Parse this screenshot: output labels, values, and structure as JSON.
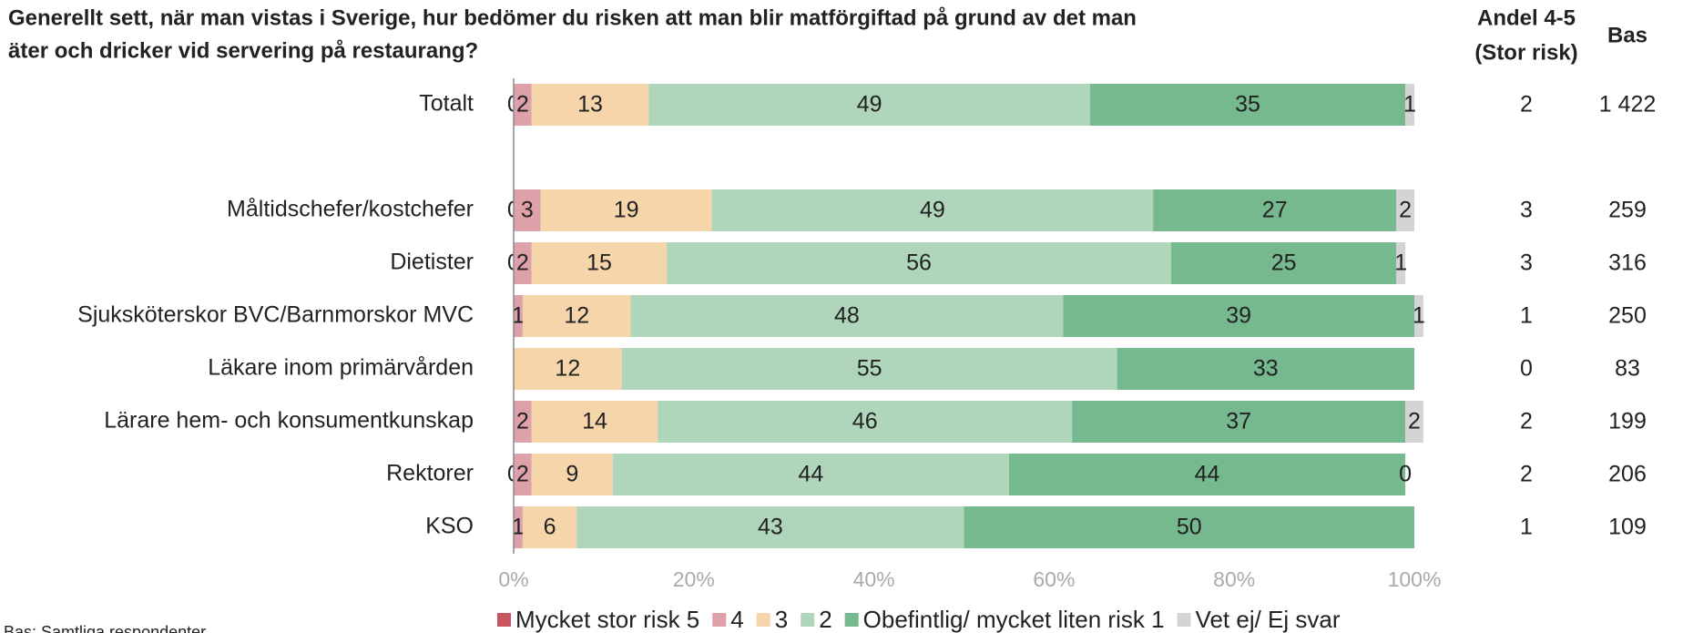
{
  "chart_data": {
    "type": "stacked-bar-horizontal",
    "title": [
      "Generellt sett, när man vistas i Sverige, hur bedömer du risken att man blir matförgiftad på grund av det man",
      "äter och dricker vid servering på restaurang?"
    ],
    "footnote": "Bas: Samtliga respondenter",
    "categories": [
      "Totalt",
      null,
      "Måltidschefer/kostchefer",
      "Dietister",
      "Sjuksköterskor BVC/Barnmorskor MVC",
      "Läkare inom primärvården",
      "Lärare hem- och konsumentkunskap",
      "Rektorer",
      "KSO"
    ],
    "series": [
      {
        "name": "Mycket stor risk 5",
        "color": "#c8555f",
        "values": [
          0,
          null,
          0,
          0,
          0,
          0,
          0,
          0,
          0
        ],
        "value_labels": [
          "0",
          null,
          "0",
          "0",
          null,
          null,
          null,
          "0",
          null
        ]
      },
      {
        "name": "4",
        "color": "#dea1a9",
        "values": [
          2,
          null,
          3,
          2,
          1,
          0,
          2,
          2,
          1
        ],
        "value_labels": [
          "2",
          null,
          "3",
          "2",
          "1",
          null,
          "2",
          "2",
          "1"
        ]
      },
      {
        "name": "3",
        "color": "#f5d5a9",
        "values": [
          13,
          null,
          19,
          15,
          12,
          12,
          14,
          9,
          6
        ],
        "value_labels": [
          "13",
          null,
          "19",
          "15",
          "12",
          "12",
          "14",
          "9",
          "6"
        ]
      },
      {
        "name": "2",
        "color": "#afd6bb",
        "values": [
          49,
          null,
          49,
          56,
          48,
          55,
          46,
          44,
          43
        ],
        "value_labels": [
          "49",
          null,
          "49",
          "56",
          "48",
          "55",
          "46",
          "44",
          "43"
        ]
      },
      {
        "name": "Obefintlig/ mycket liten risk 1",
        "color": "#76b98f",
        "values": [
          35,
          null,
          27,
          25,
          39,
          33,
          37,
          44,
          50
        ],
        "value_labels": [
          "35",
          null,
          "27",
          "25",
          "39",
          "33",
          "37",
          "44",
          "50"
        ]
      },
      {
        "name": "Vet ej/ Ej svar",
        "color": "#d4d4d4",
        "values": [
          1,
          null,
          2,
          1,
          1,
          0,
          2,
          0,
          0
        ],
        "value_labels": [
          "1",
          null,
          "2",
          "1",
          "1",
          null,
          "2",
          "0",
          null
        ]
      }
    ],
    "xlim": [
      0,
      100
    ],
    "xticks": [
      {
        "value": 0,
        "label": "0%"
      },
      {
        "value": 20,
        "label": "20%"
      },
      {
        "value": 40,
        "label": "40%"
      },
      {
        "value": 60,
        "label": "60%"
      },
      {
        "value": 80,
        "label": "80%"
      },
      {
        "value": 100,
        "label": "100%"
      }
    ],
    "columns": [
      {
        "header": [
          "Andel 4-5",
          "(Stor risk)"
        ],
        "values": [
          2,
          null,
          3,
          3,
          1,
          0,
          2,
          2,
          1
        ]
      },
      {
        "header": [
          "Bas"
        ],
        "values": [
          1422,
          null,
          259,
          316,
          250,
          83,
          199,
          206,
          109
        ],
        "value_labels": [
          "1 422",
          null,
          "259",
          "316",
          "250",
          "83",
          "199",
          "206",
          "109"
        ]
      }
    ]
  }
}
